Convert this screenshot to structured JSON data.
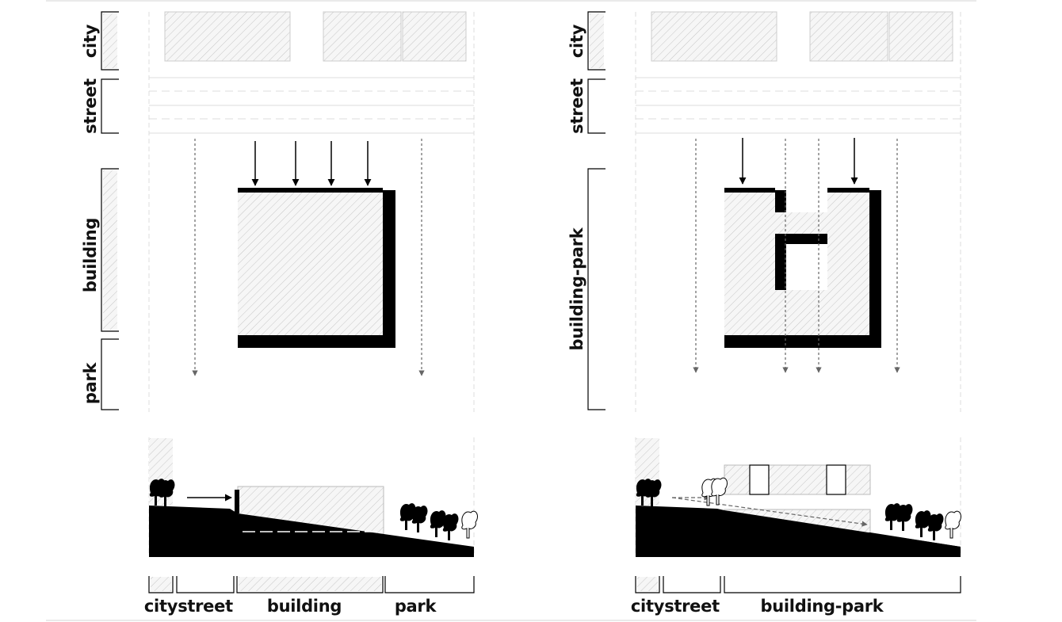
{
  "left_diagram": {
    "vertical_labels": {
      "city": "city",
      "street": "street",
      "building": "building",
      "park": "park"
    },
    "bottom_labels": {
      "city": "city",
      "street": "street",
      "building": "building",
      "park": "park"
    }
  },
  "right_diagram": {
    "vertical_labels": {
      "city": "city",
      "street": "street",
      "building_park": "building-park"
    },
    "bottom_labels": {
      "city": "city",
      "street": "street",
      "building_park": "building-park"
    }
  },
  "colors": {
    "ink": "#000000",
    "hatch_line": "#c8c8c8",
    "faint_line": "#dddddd",
    "flow_arrow": "#666666"
  },
  "icons": [
    "arrow-down-icon",
    "tree-icon"
  ]
}
